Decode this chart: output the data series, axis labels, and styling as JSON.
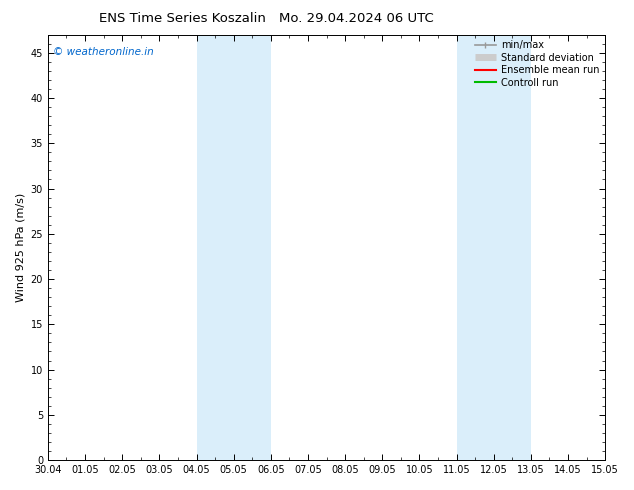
{
  "title_left": "ENS Time Series Koszalin",
  "title_right": "Mo. 29.04.2024 06 UTC",
  "ylabel": "Wind 925 hPa (m/s)",
  "watermark": "© weatheronline.in",
  "watermark_color": "#0066cc",
  "ylim": [
    0,
    47
  ],
  "yticks": [
    0,
    5,
    10,
    15,
    20,
    25,
    30,
    35,
    40,
    45
  ],
  "background_color": "#ffffff",
  "plot_bg_color": "#ffffff",
  "shading_color": "#daeefa",
  "xtick_labels": [
    "30.04",
    "01.05",
    "02.05",
    "03.05",
    "04.05",
    "05.05",
    "06.05",
    "07.05",
    "08.05",
    "09.05",
    "10.05",
    "11.05",
    "12.05",
    "13.05",
    "14.05",
    "15.05"
  ],
  "shaded_bands": [
    {
      "start": 4,
      "end": 6
    },
    {
      "start": 11,
      "end": 13
    }
  ],
  "legend_items": [
    {
      "label": "min/max",
      "color": "#999999",
      "lw": 1.2,
      "style": "line_with_caps"
    },
    {
      "label": "Standard deviation",
      "color": "#cccccc",
      "lw": 5,
      "style": "thick"
    },
    {
      "label": "Ensemble mean run",
      "color": "#ff0000",
      "lw": 1.5,
      "style": "line"
    },
    {
      "label": "Controll run",
      "color": "#00bb00",
      "lw": 1.5,
      "style": "line"
    }
  ],
  "title_fontsize": 9.5,
  "axis_label_fontsize": 8,
  "tick_fontsize": 7,
  "legend_fontsize": 7,
  "watermark_fontsize": 7.5
}
